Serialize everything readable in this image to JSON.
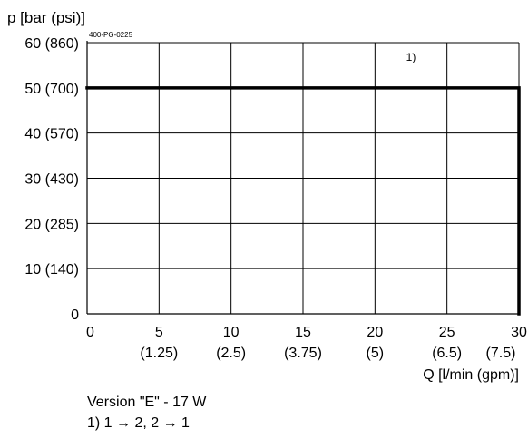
{
  "chart_data": {
    "type": "line",
    "title": "",
    "ylabel": "p [bar (psi)]",
    "xlabel": "Q [l/min (gpm)]",
    "code": "400-PG-0225",
    "xlim": [
      0,
      30
    ],
    "ylim": [
      0,
      60
    ],
    "x_ticks": [
      {
        "value": 0,
        "label": "0",
        "sub": ""
      },
      {
        "value": 5,
        "label": "5",
        "sub": "(1.25)"
      },
      {
        "value": 10,
        "label": "10",
        "sub": "(2.5)"
      },
      {
        "value": 15,
        "label": "15",
        "sub": "(3.75)"
      },
      {
        "value": 20,
        "label": "20",
        "sub": "(5)"
      },
      {
        "value": 25,
        "label": "25",
        "sub": "(6.5)"
      },
      {
        "value": 30,
        "label": "30",
        "sub": "(7.5)"
      }
    ],
    "y_ticks": [
      {
        "value": 0,
        "label": "0"
      },
      {
        "value": 10,
        "label": "10 (140)"
      },
      {
        "value": 20,
        "label": "20 (285)"
      },
      {
        "value": 30,
        "label": "30 (430)"
      },
      {
        "value": 40,
        "label": "40 (570)"
      },
      {
        "value": 50,
        "label": "50 (700)"
      },
      {
        "value": 60,
        "label": "60 (860)"
      }
    ],
    "grid": true,
    "series": [
      {
        "label": "1)",
        "label_at": [
          22.5,
          56
        ],
        "points": [
          [
            0,
            50
          ],
          [
            30,
            50
          ],
          [
            30,
            0
          ]
        ],
        "color": "#000000"
      }
    ]
  },
  "notes": {
    "version": "Version \"E\" - 17 W",
    "footnote": "1) 1 → 2, 2 → 1"
  }
}
